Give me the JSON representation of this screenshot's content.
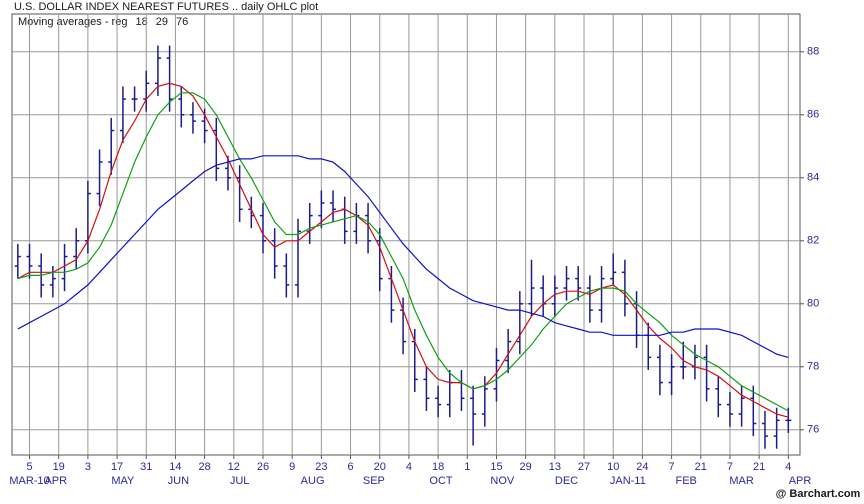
{
  "chart_data": {
    "type": "ohlc",
    "title": "U.S. DOLLAR INDEX NEAREST FUTURES .. daily OHLC plot",
    "subtitle": "Moving averages - reg",
    "footer": "@ Barchart.com",
    "x": [
      0,
      4,
      8,
      12,
      16,
      20,
      24,
      28,
      32,
      36,
      40,
      44,
      48,
      52,
      56,
      60,
      64,
      68,
      72,
      76,
      80,
      84,
      88,
      92,
      96,
      100,
      104,
      108,
      112,
      116,
      120,
      124,
      128,
      132,
      136,
      140,
      144,
      148,
      152,
      156,
      160,
      164,
      168,
      172,
      176,
      180,
      184,
      188,
      192,
      196,
      200,
      204,
      208,
      212,
      216,
      220,
      224,
      228,
      232,
      236,
      240,
      244,
      248,
      252,
      256,
      260,
      264
    ],
    "open": [
      81.2,
      81.5,
      81.2,
      80.6,
      80.8,
      81.5,
      82.0,
      83.5,
      84.5,
      85.5,
      86.5,
      86.5,
      87.0,
      87.8,
      86.5,
      86.0,
      85.8,
      85.5,
      84.3,
      84.0,
      83.0,
      82.8,
      82.0,
      81.2,
      80.6,
      82.3,
      82.8,
      83.2,
      83.0,
      82.3,
      82.8,
      82.0,
      80.8,
      79.8,
      78.8,
      77.6,
      77.0,
      76.8,
      77.5,
      77.0,
      76.5,
      77.3,
      78.2,
      78.8,
      80.0,
      80.5,
      80.0,
      80.5,
      80.8,
      80.5,
      79.8,
      80.8,
      81.0,
      80.0,
      79.0,
      78.3,
      77.5,
      78.0,
      78.0,
      78.3,
      77.3,
      76.8,
      76.5,
      77.0,
      76.2,
      75.8,
      76.3
    ],
    "high": [
      81.9,
      81.9,
      81.6,
      81.2,
      81.9,
      82.4,
      83.9,
      84.9,
      85.9,
      86.9,
      86.9,
      87.4,
      88.2,
      88.2,
      86.9,
      86.4,
      86.2,
      85.9,
      84.7,
      84.4,
      83.4,
      83.2,
      82.4,
      81.6,
      82.7,
      83.2,
      83.6,
      83.6,
      83.4,
      83.2,
      83.2,
      82.4,
      81.2,
      80.2,
      79.2,
      78.0,
      77.4,
      77.9,
      77.9,
      77.4,
      77.7,
      78.6,
      79.2,
      80.4,
      81.4,
      80.9,
      80.9,
      81.2,
      81.2,
      80.9,
      81.2,
      81.6,
      81.4,
      80.4,
      79.4,
      78.7,
      78.4,
      78.8,
      78.7,
      78.7,
      77.7,
      77.2,
      77.4,
      77.4,
      76.6,
      76.7,
      76.7
    ],
    "low": [
      80.8,
      80.8,
      80.2,
      80.2,
      80.4,
      81.1,
      81.6,
      83.1,
      84.1,
      85.1,
      86.1,
      86.1,
      86.6,
      86.1,
      85.6,
      85.4,
      85.1,
      83.9,
      83.6,
      82.6,
      82.4,
      81.6,
      80.8,
      80.2,
      80.2,
      81.9,
      82.4,
      82.6,
      81.9,
      81.9,
      81.6,
      80.4,
      79.4,
      78.4,
      77.2,
      76.6,
      76.4,
      76.4,
      76.6,
      75.5,
      76.1,
      76.9,
      77.8,
      78.4,
      79.6,
      79.6,
      79.6,
      80.1,
      80.1,
      79.4,
      79.4,
      80.6,
      79.6,
      78.6,
      77.9,
      77.1,
      77.1,
      77.6,
      77.6,
      76.9,
      76.4,
      76.1,
      76.1,
      75.8,
      75.4,
      75.4,
      75.9
    ],
    "close": [
      81.5,
      81.2,
      80.6,
      80.8,
      81.5,
      82.0,
      83.5,
      84.5,
      85.5,
      86.5,
      86.5,
      87.0,
      87.8,
      86.5,
      86.0,
      85.8,
      85.5,
      84.3,
      84.0,
      83.0,
      82.8,
      82.0,
      81.2,
      80.6,
      82.3,
      82.8,
      83.2,
      83.0,
      82.3,
      82.8,
      82.0,
      80.8,
      79.8,
      78.8,
      77.6,
      77.0,
      76.8,
      77.5,
      77.0,
      76.5,
      77.3,
      78.2,
      78.8,
      80.0,
      80.5,
      80.0,
      80.5,
      80.8,
      80.5,
      79.8,
      80.8,
      81.0,
      80.0,
      79.0,
      78.3,
      77.5,
      78.0,
      78.0,
      78.3,
      77.3,
      76.8,
      76.5,
      77.0,
      76.2,
      75.8,
      76.3,
      76.3
    ],
    "color": "#1c1c8a",
    "series": [
      {
        "name": "18",
        "color": "#d01010",
        "values": [
          80.8,
          81.0,
          81.0,
          81.0,
          81.2,
          81.4,
          82.0,
          83.0,
          84.2,
          85.2,
          85.8,
          86.5,
          86.9,
          87.0,
          86.9,
          86.6,
          86.0,
          85.3,
          84.6,
          83.8,
          83.0,
          82.2,
          81.8,
          82.0,
          82.0,
          82.3,
          82.6,
          82.9,
          83.0,
          82.8,
          82.5,
          81.8,
          80.8,
          79.8,
          78.8,
          78.0,
          77.6,
          77.5,
          77.5,
          77.3,
          77.4,
          77.8,
          78.4,
          79.0,
          79.6,
          80.0,
          80.3,
          80.4,
          80.4,
          80.3,
          80.5,
          80.6,
          80.3,
          79.8,
          79.3,
          78.9,
          78.6,
          78.2,
          78.0,
          77.9,
          77.7,
          77.4,
          77.1,
          76.9,
          76.7,
          76.5,
          76.4
        ]
      },
      {
        "name": "29",
        "color": "#10a010",
        "values": [
          80.8,
          80.9,
          80.9,
          81.0,
          81.0,
          81.1,
          81.3,
          81.8,
          82.5,
          83.5,
          84.5,
          85.3,
          86.0,
          86.4,
          86.7,
          86.7,
          86.5,
          86.0,
          85.3,
          84.6,
          84.0,
          83.3,
          82.6,
          82.2,
          82.2,
          82.4,
          82.5,
          82.6,
          82.7,
          82.8,
          82.6,
          82.2,
          81.5,
          80.8,
          79.8,
          79.0,
          78.3,
          77.8,
          77.5,
          77.3,
          77.4,
          77.6,
          77.9,
          78.3,
          78.7,
          79.2,
          79.6,
          80.0,
          80.2,
          80.4,
          80.5,
          80.5,
          80.4,
          80.0,
          79.7,
          79.4,
          79.0,
          78.7,
          78.4,
          78.2,
          78.0,
          77.7,
          77.4,
          77.2,
          77.0,
          76.8,
          76.6
        ]
      },
      {
        "name": "76",
        "color": "#1010c8",
        "values": [
          79.2,
          79.4,
          79.6,
          79.8,
          80.0,
          80.3,
          80.6,
          81.0,
          81.4,
          81.8,
          82.2,
          82.6,
          83.0,
          83.3,
          83.6,
          83.9,
          84.2,
          84.4,
          84.5,
          84.6,
          84.6,
          84.7,
          84.7,
          84.7,
          84.7,
          84.6,
          84.6,
          84.5,
          84.2,
          83.8,
          83.4,
          82.9,
          82.4,
          81.9,
          81.5,
          81.1,
          80.8,
          80.5,
          80.3,
          80.1,
          80.0,
          79.9,
          79.8,
          79.8,
          79.7,
          79.6,
          79.4,
          79.3,
          79.2,
          79.1,
          79.1,
          79.0,
          79.0,
          79.0,
          79.0,
          79.0,
          79.1,
          79.1,
          79.2,
          79.2,
          79.2,
          79.1,
          79.0,
          78.8,
          78.6,
          78.4,
          78.3
        ]
      }
    ],
    "xlim": [
      -2,
      268
    ],
    "ylim": [
      75.2,
      89.2
    ],
    "yticks": [
      76,
      78,
      80,
      82,
      84,
      86,
      88
    ],
    "xticks": [
      {
        "value": 4,
        "label": "5"
      },
      {
        "value": 14,
        "label": "19"
      },
      {
        "value": 24,
        "label": "3"
      },
      {
        "value": 34,
        "label": "17"
      },
      {
        "value": 44,
        "label": "31"
      },
      {
        "value": 54,
        "label": "14"
      },
      {
        "value": 64,
        "label": "28"
      },
      {
        "value": 74,
        "label": "12"
      },
      {
        "value": 84,
        "label": "26"
      },
      {
        "value": 94,
        "label": "9"
      },
      {
        "value": 104,
        "label": "23"
      },
      {
        "value": 114,
        "label": "6"
      },
      {
        "value": 124,
        "label": "20"
      },
      {
        "value": 134,
        "label": "4"
      },
      {
        "value": 144,
        "label": "18"
      },
      {
        "value": 154,
        "label": "1"
      },
      {
        "value": 164,
        "label": "15"
      },
      {
        "value": 174,
        "label": "29"
      },
      {
        "value": 184,
        "label": "13"
      },
      {
        "value": 194,
        "label": "27"
      },
      {
        "value": 204,
        "label": "10"
      },
      {
        "value": 214,
        "label": "24"
      },
      {
        "value": 224,
        "label": "7"
      },
      {
        "value": 234,
        "label": "21"
      },
      {
        "value": 244,
        "label": "7"
      },
      {
        "value": 254,
        "label": "21"
      },
      {
        "value": 264,
        "label": "4"
      }
    ],
    "month_labels": [
      {
        "value": 4,
        "label": "MAR-10"
      },
      {
        "value": 13,
        "label": "APR"
      },
      {
        "value": 36,
        "label": "MAY"
      },
      {
        "value": 55,
        "label": "JUN"
      },
      {
        "value": 76,
        "label": "JUL"
      },
      {
        "value": 101,
        "label": "AUG"
      },
      {
        "value": 122,
        "label": "SEP"
      },
      {
        "value": 145,
        "label": "OCT"
      },
      {
        "value": 166,
        "label": "NOV"
      },
      {
        "value": 188,
        "label": "DEC"
      },
      {
        "value": 209,
        "label": "JAN-11"
      },
      {
        "value": 229,
        "label": "FEB"
      },
      {
        "value": 248,
        "label": "MAR"
      },
      {
        "value": 268,
        "label": "APR"
      }
    ],
    "grid": true
  }
}
